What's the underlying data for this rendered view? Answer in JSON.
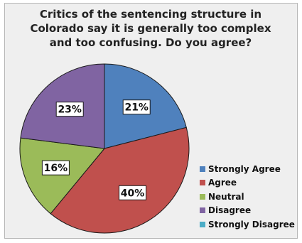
{
  "chart_data": {
    "type": "pie",
    "title": "Critics of the sentencing structure in\nColorado say it is generally too complex\nand too confusing.  Do you agree?",
    "slices": [
      {
        "label": "Strongly Agree",
        "value": 21,
        "color": "#4f81bd",
        "text": "21%"
      },
      {
        "label": "Agree",
        "value": 40,
        "color": "#c0504d",
        "text": "40%"
      },
      {
        "label": "Neutral",
        "value": 16,
        "color": "#9bbb59",
        "text": "16%"
      },
      {
        "label": "Disagree",
        "value": 23,
        "color": "#8064a2",
        "text": "23%"
      },
      {
        "label": "Strongly Disagree",
        "value": 0,
        "color": "#4bacc6",
        "text": ""
      }
    ],
    "legend_position": "right"
  }
}
